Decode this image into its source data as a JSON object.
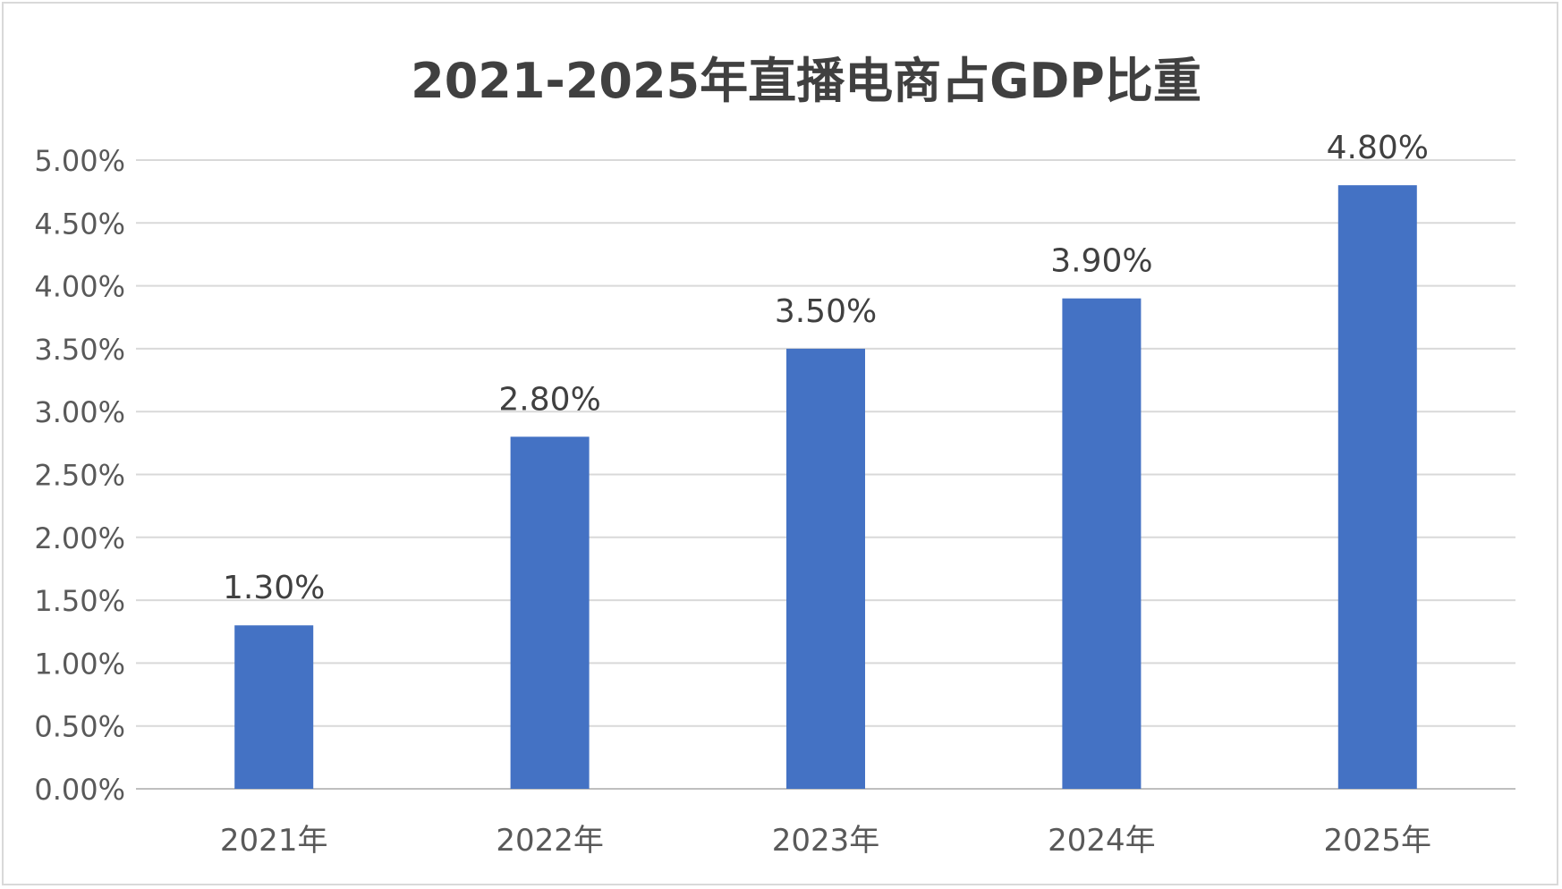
{
  "chart_data": {
    "type": "bar",
    "title": "2021-2025年直播电商占GDP比重",
    "categories": [
      "2021年",
      "2022年",
      "2023年",
      "2024年",
      "2025年"
    ],
    "values": [
      1.3,
      2.8,
      3.5,
      3.9,
      4.8
    ],
    "data_labels": [
      "1.30%",
      "2.80%",
      "3.50%",
      "3.90%",
      "4.80%"
    ],
    "y_ticks": [
      0,
      0.5,
      1.0,
      1.5,
      2.0,
      2.5,
      3.0,
      3.5,
      4.0,
      4.5,
      5.0
    ],
    "y_tick_labels": [
      "0.00%",
      "0.50%",
      "1.00%",
      "1.50%",
      "2.00%",
      "2.50%",
      "3.00%",
      "3.50%",
      "4.00%",
      "4.50%",
      "5.00%"
    ],
    "ylim": [
      0,
      5
    ],
    "xlabel": "",
    "ylabel": "",
    "grid": true,
    "legend": "none",
    "colors": {
      "bar": "#4472c4",
      "grid": "#d9d9d9",
      "axis": "#bfbfbf"
    }
  }
}
